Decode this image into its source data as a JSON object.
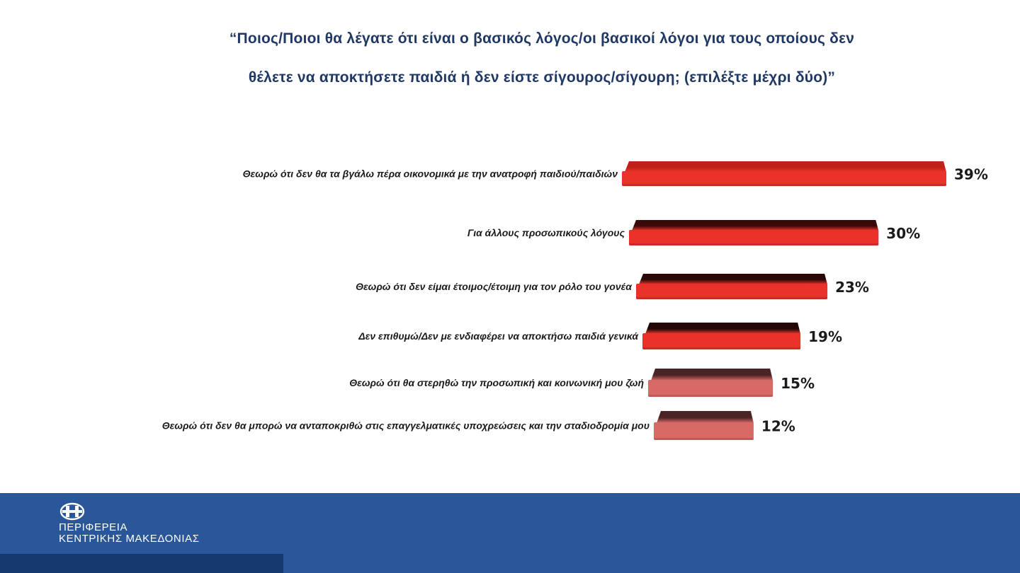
{
  "header": {
    "title_line1": "“Ποιος/Ποιοι θα λέγατε ότι είναι ο βασικός λόγος/οι βασικοί λόγοι για τους οποίους δεν",
    "title_line2": "θέλετε να αποκτήσετε παιδιά ή δεν είστε σίγουρος/σίγουρη; (επιλέξτε μέχρι δύο)”"
  },
  "chart_data": {
    "type": "bar",
    "orientation": "horizontal",
    "title": "“Ποιος/Ποιοι θα λέγατε ότι είναι ο βασικός λόγος/οι βασικοί λόγοι για τους οποίους δεν θέλετε να αποκτήσετε παιδιά ή δεν είστε σίγουρος/σίγουρη; (επιλέξτε μέχρι δύο)”",
    "categories": [
      "Θεωρώ ότι δεν θα τα βγάλω πέρα οικονομικά με την ανατροφή παιδιού/παιδιών",
      "Για άλλους προσωπικούς λόγους",
      "Θεωρώ ότι δεν είμαι έτοιμος/έτοιμη για τον ρόλο του γονέα",
      "Δεν επιθυμώ/Δεν με ενδιαφέρει να αποκτήσω παιδιά γενικά",
      "Θεωρώ ότι θα στερηθώ την προσωπική και κοινωνική μου ζωή",
      "Θεωρώ ότι δεν θα μπορώ να ανταποκριθώ στις επαγγελματικές υποχρεώσεις και την σταδιοδρομία μου"
    ],
    "values": [
      39,
      30,
      23,
      19,
      15,
      12
    ],
    "value_labels": [
      "39%",
      "30%",
      "23%",
      "19%",
      "15%",
      "12%"
    ],
    "unit": "%",
    "xlim": [
      0,
      39
    ],
    "grid": false,
    "legend": "none",
    "colors": [
      "#e8322a",
      "#e8322a",
      "#e8322a",
      "#e8322a",
      "#d86a66",
      "#d86a66"
    ],
    "top_colors": [
      "#c0201a",
      "#3a0a0a",
      "#2a0808",
      "#230707",
      "#4a2424",
      "#4a2424"
    ]
  },
  "footer": {
    "org_line1": "ΠΕΡΙΦΕΡΕΙΑ",
    "org_line2": "ΚΕΝΤΡΙΚΗΣ ΜΑΚΕΔΟΝΙΑΣ",
    "background": "#2a579a",
    "strip_color": "#163a6d",
    "logo_icon": "region-emblem-icon"
  }
}
